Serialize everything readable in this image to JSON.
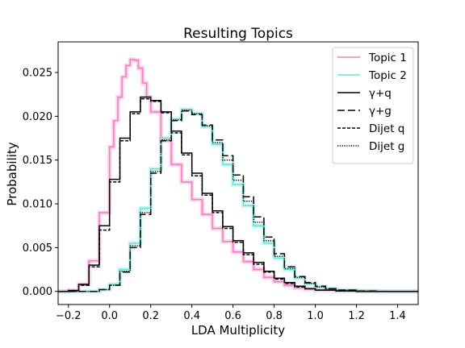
{
  "chart_data": {
    "type": "line",
    "title": "Resulting Topics",
    "xlabel": "LDA Multiplicity",
    "ylabel": "Probability",
    "xlim": [
      -0.25,
      1.5
    ],
    "ylim": [
      -0.0015,
      0.0285
    ],
    "xticks": [
      -0.2,
      0.0,
      0.2,
      0.4,
      0.6,
      0.8,
      1.0,
      1.2,
      1.4
    ],
    "xtick_labels": [
      "−0.2",
      "0.0",
      "0.2",
      "0.4",
      "0.6",
      "0.8",
      "1.0",
      "1.2",
      "1.4"
    ],
    "yticks": [
      0.0,
      0.005,
      0.01,
      0.015,
      0.02,
      0.025
    ],
    "ytick_labels": [
      "0.000",
      "0.005",
      "0.010",
      "0.015",
      "0.020",
      "0.025"
    ],
    "grid": false,
    "legend_position": "upper right",
    "series": [
      {
        "name": "Topic 1",
        "color": "#ff77c0",
        "style": "solid",
        "band": true,
        "x": [
          -0.25,
          -0.2,
          -0.15,
          -0.1,
          -0.05,
          0.0,
          0.02,
          0.04,
          0.06,
          0.08,
          0.1,
          0.12,
          0.14,
          0.16,
          0.18,
          0.2,
          0.25,
          0.3,
          0.35,
          0.4,
          0.45,
          0.5,
          0.55,
          0.6,
          0.65,
          0.7,
          0.75,
          0.8,
          0.85,
          0.9,
          0.95,
          1.0,
          1.1,
          1.2,
          1.3,
          1.5
        ],
        "y": [
          0.0,
          0.0001,
          0.0008,
          0.0035,
          0.009,
          0.0165,
          0.0195,
          0.0222,
          0.0245,
          0.0258,
          0.0265,
          0.0264,
          0.0255,
          0.0238,
          0.0222,
          0.0205,
          0.0172,
          0.0145,
          0.0125,
          0.0105,
          0.0088,
          0.0072,
          0.0057,
          0.0045,
          0.0034,
          0.0025,
          0.0016,
          0.0011,
          0.0007,
          0.0004,
          0.00025,
          0.00015,
          5e-05,
          2e-05,
          0.0,
          0.0
        ]
      },
      {
        "name": "Topic 2",
        "color": "#5fe8d6",
        "style": "solid",
        "band": true,
        "x": [
          -0.25,
          -0.1,
          -0.05,
          0.0,
          0.05,
          0.1,
          0.15,
          0.2,
          0.25,
          0.3,
          0.35,
          0.4,
          0.45,
          0.5,
          0.55,
          0.6,
          0.65,
          0.7,
          0.75,
          0.8,
          0.85,
          0.9,
          0.95,
          1.0,
          1.05,
          1.1,
          1.2,
          1.3,
          1.5
        ],
        "y": [
          0.0,
          0.0,
          0.0002,
          0.0008,
          0.0025,
          0.0055,
          0.0095,
          0.014,
          0.0175,
          0.0197,
          0.0208,
          0.0203,
          0.0188,
          0.0168,
          0.0145,
          0.0122,
          0.0098,
          0.0075,
          0.0055,
          0.0038,
          0.0025,
          0.0015,
          0.0009,
          0.0005,
          0.0003,
          0.00015,
          5e-05,
          0.0,
          0.0
        ]
      },
      {
        "name": "γ+q",
        "color": "#000000",
        "style": "solid",
        "band": false,
        "x": [
          -0.25,
          -0.2,
          -0.15,
          -0.1,
          -0.05,
          0.0,
          0.05,
          0.1,
          0.15,
          0.2,
          0.25,
          0.3,
          0.35,
          0.4,
          0.45,
          0.5,
          0.55,
          0.6,
          0.65,
          0.7,
          0.75,
          0.8,
          0.85,
          0.9,
          0.95,
          1.0,
          1.1,
          1.2,
          1.5
        ],
        "y": [
          0.0,
          0.0001,
          0.0008,
          0.003,
          0.0075,
          0.0128,
          0.0175,
          0.0205,
          0.0222,
          0.0218,
          0.0205,
          0.0183,
          0.0158,
          0.0135,
          0.0112,
          0.0092,
          0.0074,
          0.0058,
          0.0044,
          0.0033,
          0.0023,
          0.0015,
          0.001,
          0.0006,
          0.0003,
          0.00015,
          5e-05,
          0.0,
          0.0
        ]
      },
      {
        "name": "γ+g",
        "color": "#000000",
        "style": "longdash",
        "band": false,
        "x": [
          -0.25,
          -0.1,
          -0.05,
          0.0,
          0.05,
          0.1,
          0.15,
          0.2,
          0.25,
          0.3,
          0.35,
          0.4,
          0.45,
          0.5,
          0.55,
          0.6,
          0.65,
          0.7,
          0.75,
          0.8,
          0.85,
          0.9,
          0.95,
          1.0,
          1.05,
          1.1,
          1.2,
          1.3,
          1.5
        ],
        "y": [
          0.0,
          0.0,
          0.0002,
          0.0007,
          0.0022,
          0.005,
          0.0088,
          0.0135,
          0.0172,
          0.0195,
          0.0206,
          0.0202,
          0.019,
          0.0173,
          0.0155,
          0.0133,
          0.0108,
          0.0085,
          0.0062,
          0.0043,
          0.0028,
          0.0017,
          0.001,
          0.0006,
          0.0003,
          0.00015,
          5e-05,
          0.0,
          0.0
        ]
      },
      {
        "name": "Dijet q",
        "color": "#000000",
        "style": "dash",
        "band": false,
        "x": [
          -0.25,
          -0.2,
          -0.15,
          -0.1,
          -0.05,
          0.0,
          0.05,
          0.1,
          0.15,
          0.2,
          0.25,
          0.3,
          0.35,
          0.4,
          0.45,
          0.5,
          0.55,
          0.6,
          0.65,
          0.7,
          0.75,
          0.8,
          0.85,
          0.9,
          0.95,
          1.0,
          1.1,
          1.2,
          1.5
        ],
        "y": [
          0.0,
          0.0001,
          0.0007,
          0.0028,
          0.007,
          0.0125,
          0.0172,
          0.0203,
          0.022,
          0.0217,
          0.0204,
          0.0181,
          0.0156,
          0.0132,
          0.011,
          0.009,
          0.0072,
          0.0056,
          0.0042,
          0.0031,
          0.0022,
          0.0014,
          0.0009,
          0.0005,
          0.0003,
          0.00015,
          5e-05,
          0.0,
          0.0
        ]
      },
      {
        "name": "Dijet g",
        "color": "#000000",
        "style": "dot",
        "band": false,
        "x": [
          -0.25,
          -0.1,
          -0.05,
          0.0,
          0.05,
          0.1,
          0.15,
          0.2,
          0.25,
          0.3,
          0.35,
          0.4,
          0.45,
          0.5,
          0.55,
          0.6,
          0.65,
          0.7,
          0.75,
          0.8,
          0.85,
          0.9,
          0.95,
          1.0,
          1.05,
          1.1,
          1.2,
          1.3,
          1.5
        ],
        "y": [
          0.0,
          0.0,
          0.0002,
          0.0007,
          0.0023,
          0.0052,
          0.009,
          0.0137,
          0.0173,
          0.0196,
          0.0207,
          0.0203,
          0.0189,
          0.017,
          0.015,
          0.0127,
          0.0103,
          0.0079,
          0.0058,
          0.004,
          0.0026,
          0.0016,
          0.0009,
          0.0005,
          0.0003,
          0.00015,
          5e-05,
          0.0,
          0.0
        ]
      }
    ]
  }
}
